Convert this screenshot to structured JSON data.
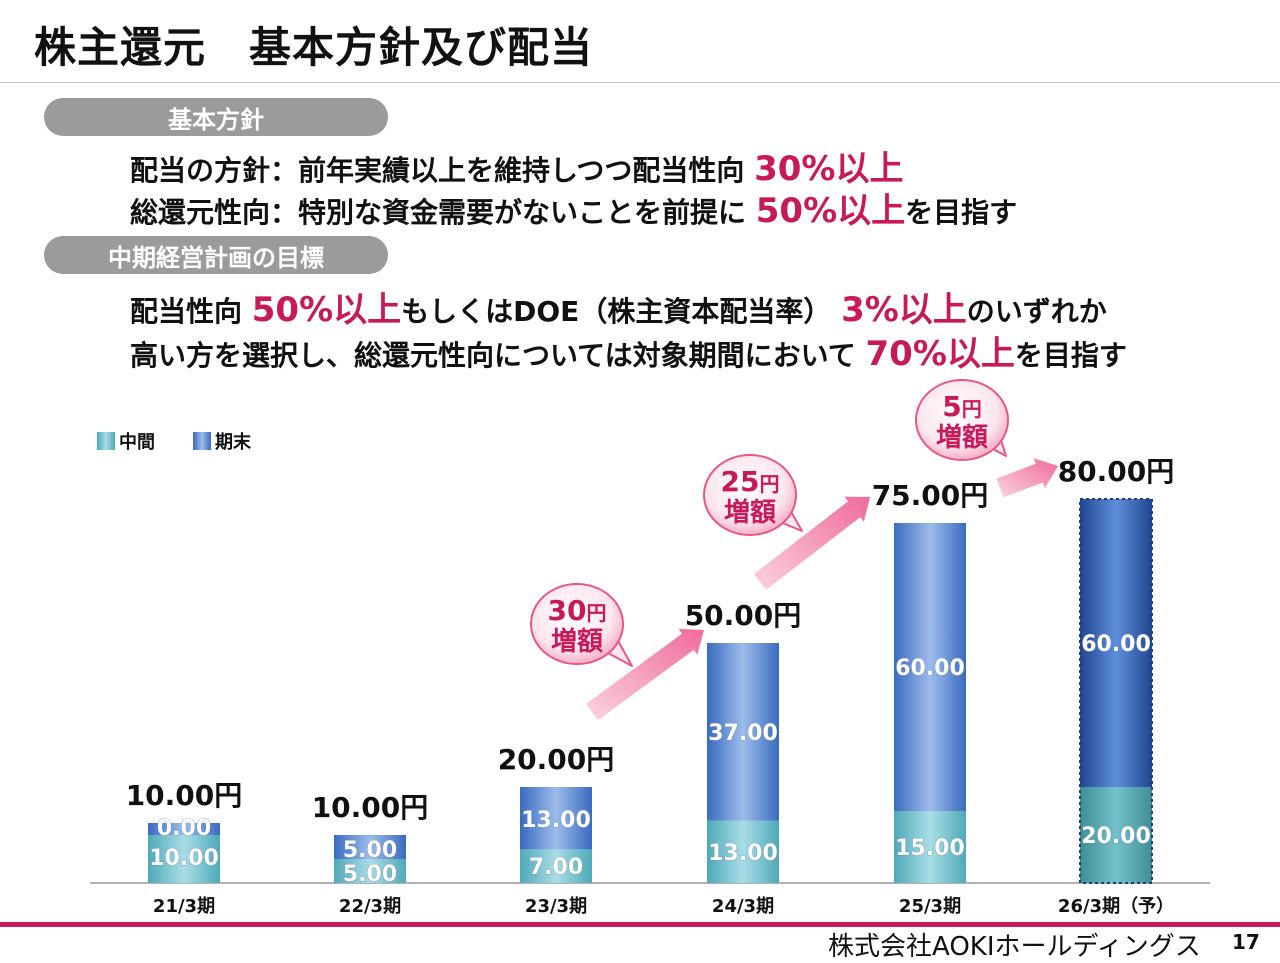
{
  "page": {
    "title": "株主還元　基本方針及び配当",
    "company": "株式会社AOKIホールディングス",
    "page_number": "17"
  },
  "policy": {
    "pill": "基本方針",
    "line1_pre": "配当の方針：前年実績以上を維持しつつ配当性向 ",
    "line1_hl": "30%以上",
    "line2_pre": "総還元性向：特別な資金需要がないことを前提に ",
    "line2_hl": "50%以上",
    "line2_post": "を目指す"
  },
  "midterm": {
    "pill": "中期経営計画の目標",
    "line1_pre": "配当性向 ",
    "line1_hl1": "50%以上",
    "line1_mid": "もしくはDOE（株主資本配当率） ",
    "line1_hl2": "3%以上",
    "line1_post": "のいずれか",
    "line2_pre": "高い方を選択し、総還元性向については対象期間において ",
    "line2_hl": "70%以上",
    "line2_post": "を目指す"
  },
  "colors": {
    "interim": "#6cc0cf",
    "yearend": "#3f72c4",
    "accent": "#c8195a",
    "bubble": "#e9558d"
  },
  "chart_data": {
    "type": "bar",
    "stacked": true,
    "categories": [
      "21/3期",
      "22/3期",
      "23/3期",
      "24/3期",
      "25/3期",
      "26/3期（予）"
    ],
    "series": [
      {
        "name": "中間",
        "values": [
          10,
          5,
          7,
          13,
          15,
          20
        ]
      },
      {
        "name": "期末",
        "values": [
          0,
          5,
          13,
          37,
          60,
          60
        ]
      }
    ],
    "segment_labels": {
      "中間": [
        "10.00",
        "5.00",
        "7.00",
        "13.00",
        "15.00",
        "20.00"
      ],
      "期末": [
        "0.00",
        "5.00",
        "13.00",
        "37.00",
        "60.00",
        "60.00"
      ]
    },
    "totals": [
      "10.00円",
      "10.00円",
      "20.00円",
      "50.00円",
      "75.00円",
      "80.00円"
    ],
    "forecast_index": 5,
    "ylim": [
      0,
      80
    ],
    "legend": [
      "中間",
      "期末"
    ],
    "legend_position": "top-left",
    "annotations": [
      {
        "from": 2,
        "to": 3,
        "amount": "30",
        "unit": "円",
        "text": "増額"
      },
      {
        "from": 3,
        "to": 4,
        "amount": "25",
        "unit": "円",
        "text": "増額"
      },
      {
        "from": 4,
        "to": 5,
        "amount": "5",
        "unit": "円",
        "text": "増額"
      }
    ]
  }
}
